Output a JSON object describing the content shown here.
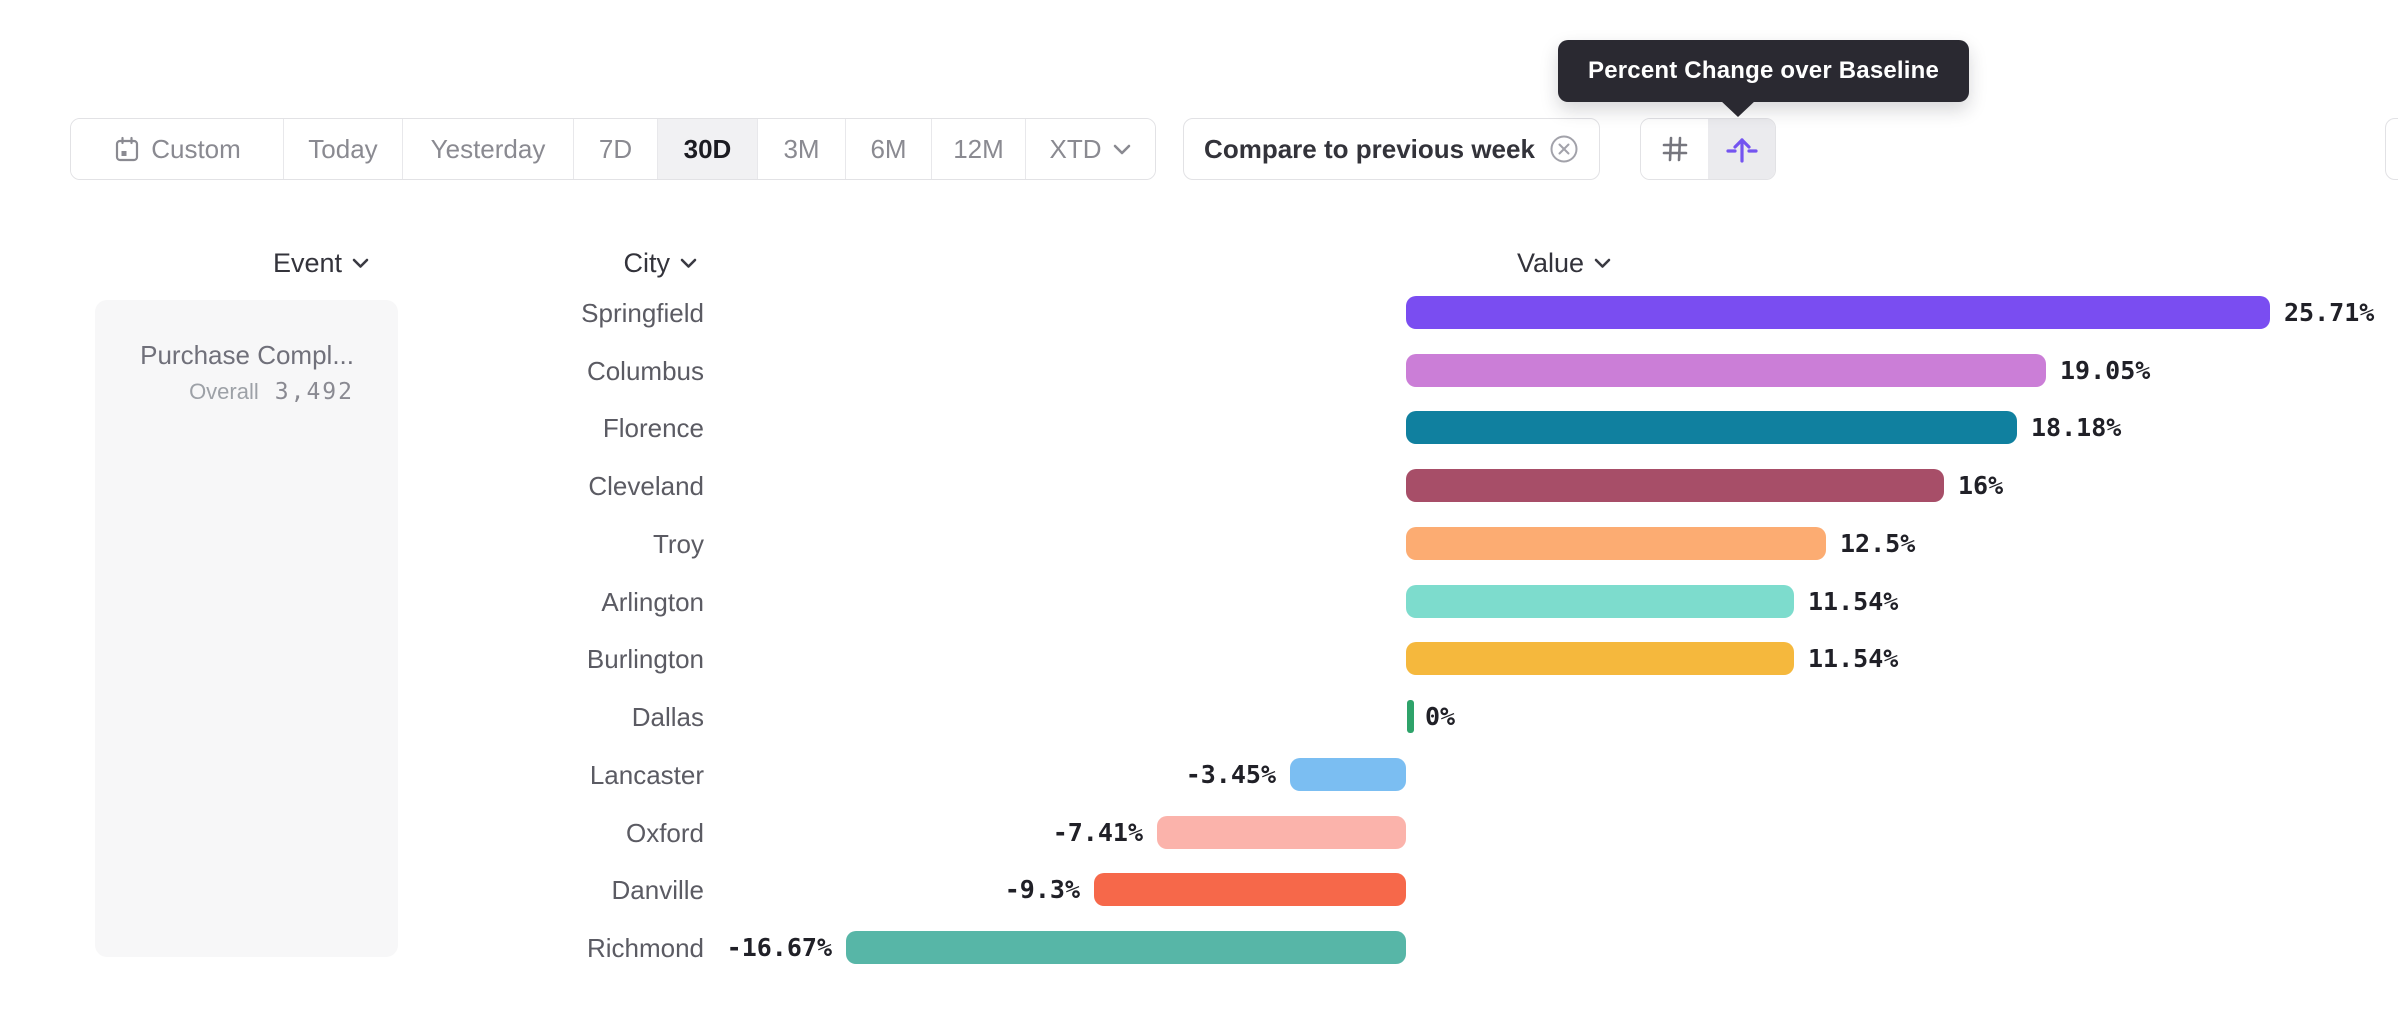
{
  "tooltip": {
    "text": "Percent Change over Baseline"
  },
  "toolbar": {
    "date_buttons": [
      {
        "label": "Custom",
        "icon": "calendar-icon",
        "selected": false
      },
      {
        "label": "Today",
        "selected": false
      },
      {
        "label": "Yesterday",
        "selected": false
      },
      {
        "label": "7D",
        "selected": false
      },
      {
        "label": "30D",
        "selected": true
      },
      {
        "label": "3M",
        "selected": false
      },
      {
        "label": "6M",
        "selected": false
      },
      {
        "label": "12M",
        "selected": false
      },
      {
        "label": "XTD",
        "icon": "chevron-down-icon",
        "selected": false
      }
    ],
    "compare_chip": {
      "label": "Compare to previous week",
      "close_icon": "circle-x-icon"
    },
    "view_toggle": [
      {
        "icon": "grid-icon",
        "selected": false
      },
      {
        "icon": "baseline-arrow-icon",
        "selected": true
      }
    ]
  },
  "table": {
    "headers": [
      {
        "label": "Event",
        "icon": "chevron-down-icon"
      },
      {
        "label": "City",
        "icon": "chevron-down-icon"
      },
      {
        "label": "Value",
        "icon": "chevron-down-icon"
      }
    ],
    "event_cell": {
      "name": "Purchase Compl...",
      "overall_label": "Overall",
      "overall_value": "3,492"
    }
  },
  "chart_data": {
    "type": "bar",
    "orientation": "horizontal",
    "title": "Percent Change over Baseline",
    "categories": [
      "Springfield",
      "Columbus",
      "Florence",
      "Cleveland",
      "Troy",
      "Arlington",
      "Burlington",
      "Dallas",
      "Lancaster",
      "Oxford",
      "Danville",
      "Richmond"
    ],
    "values": [
      25.71,
      19.05,
      18.18,
      16,
      12.5,
      11.54,
      11.54,
      0,
      -3.45,
      -7.41,
      -9.3,
      -16.67
    ],
    "labels": [
      "25.71%",
      "19.05%",
      "18.18%",
      "16%",
      "12.5%",
      "11.54%",
      "11.54%",
      "0%",
      "-3.45%",
      "-7.41%",
      "-9.3%",
      "-16.67%"
    ],
    "colors": [
      "#7A4DF1",
      "#CB7ED7",
      "#10809F",
      "#A74E68",
      "#FCAC72",
      "#7DDCCD",
      "#F5B83D",
      "#2EA36A",
      "#7BBEF2",
      "#FBB3AB",
      "#F6684A",
      "#57B6A7"
    ],
    "series_name": "Value",
    "xlim": [
      -18,
      27
    ],
    "grid": false,
    "legend": false
  },
  "colors": {
    "accent_purple": "#7454F0",
    "tooltip_bg": "#2A2931",
    "border": "#E2E2E5",
    "panel_bg": "#F7F7F8",
    "selected_segment_bg": "#F1F1F3",
    "muted_text": "#8A8A91",
    "dark_text": "#1C1C22"
  }
}
